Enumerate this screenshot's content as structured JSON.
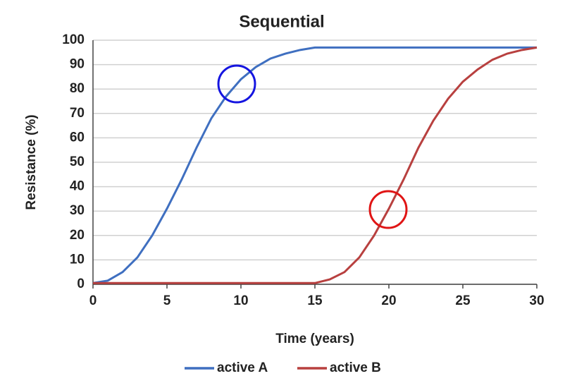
{
  "chart_data": {
    "type": "line",
    "title": "Sequential",
    "x_label": "Time (years)",
    "y_label": "Resistance (%)",
    "x": [
      0,
      1,
      2,
      3,
      4,
      5,
      6,
      7,
      8,
      9,
      10,
      11,
      12,
      13,
      14,
      15,
      16,
      17,
      18,
      19,
      20,
      21,
      22,
      23,
      24,
      25,
      26,
      27,
      28,
      29,
      30
    ],
    "series": [
      {
        "name": "active A",
        "color": "#3f6fc0",
        "values": [
          0.5,
          1.5,
          5,
          11,
          20,
          31,
          43,
          56,
          68,
          77,
          84,
          89,
          92.5,
          94.5,
          96,
          97,
          97,
          97,
          97,
          97,
          97,
          97,
          97,
          97,
          97,
          97,
          97,
          97,
          97,
          97,
          97
        ]
      },
      {
        "name": "active B",
        "color": "#b8403f",
        "values": [
          0.5,
          0.5,
          0.5,
          0.5,
          0.5,
          0.5,
          0.5,
          0.5,
          0.5,
          0.5,
          0.5,
          0.5,
          0.5,
          0.5,
          0.5,
          0.5,
          2,
          5,
          11,
          20,
          31,
          43,
          56,
          67,
          76,
          83,
          88,
          92,
          94.5,
          96,
          97
        ]
      }
    ],
    "xlim": [
      0,
      30
    ],
    "xticks": [
      0,
      5,
      10,
      15,
      20,
      25,
      30
    ],
    "ylim": [
      0,
      100
    ],
    "yticks": [
      0,
      10,
      20,
      30,
      40,
      50,
      60,
      70,
      80,
      90,
      100
    ],
    "grid": true
  }
}
